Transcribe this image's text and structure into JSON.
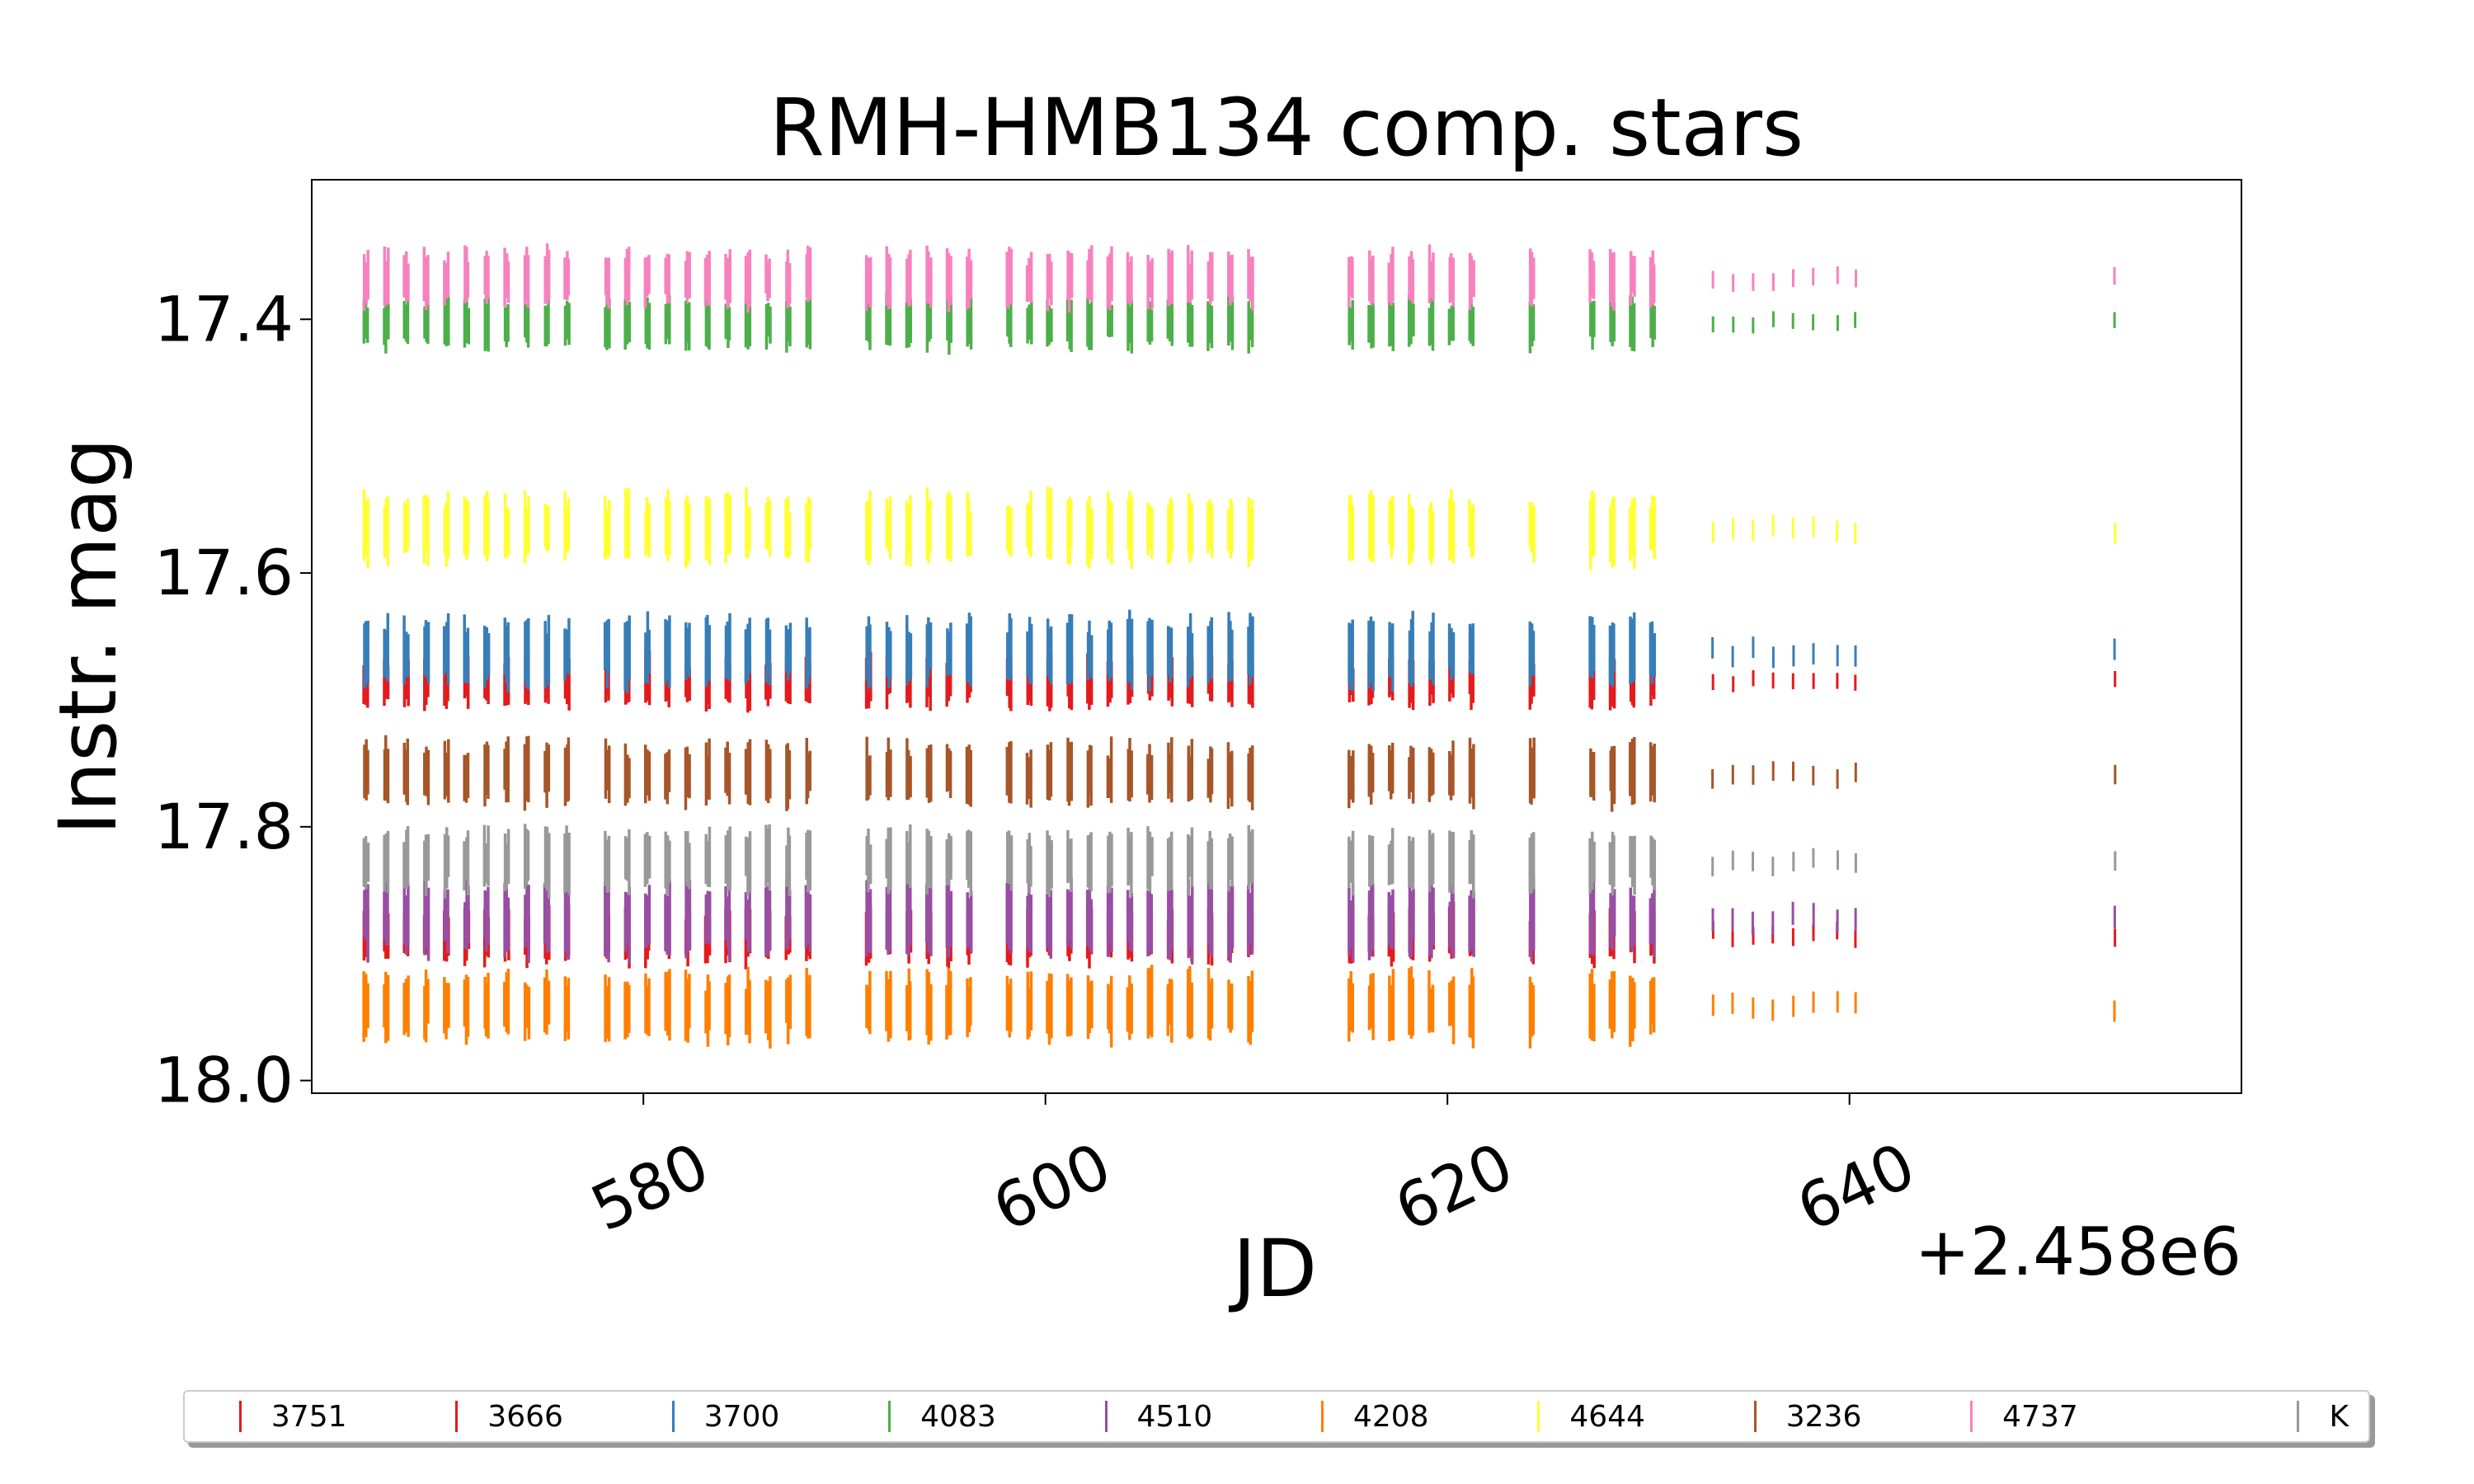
{
  "chart_data": {
    "type": "scatter",
    "title": "RMH-HMB134 comp. stars",
    "xlabel": "JD",
    "ylabel": "Instr. mag",
    "x_offset_label": "+2.458e6",
    "xlim": [
      563.5,
      659.5
    ],
    "ylim": [
      18.01,
      17.29
    ],
    "y_inverted": true,
    "xticks": [
      580,
      600,
      620,
      640
    ],
    "yticks": [
      17.4,
      17.6,
      17.8,
      18.0
    ],
    "ytick_labels": [
      "17.4",
      "17.6",
      "17.8",
      "18.0"
    ],
    "grid": false,
    "legend_position": "bottom",
    "nights": [
      566.2,
      567.2,
      568.2,
      569.2,
      570.2,
      571.2,
      572.2,
      573.2,
      574.2,
      575.2,
      576.2,
      578.2,
      579.2,
      580.2,
      581.2,
      582.2,
      583.2,
      584.2,
      585.2,
      586.2,
      587.2,
      588.2,
      591.2,
      592.2,
      593.2,
      594.2,
      595.2,
      596.2,
      598.2,
      599.2,
      600.2,
      601.2,
      602.2,
      603.2,
      604.2,
      605.2,
      606.2,
      607.2,
      608.2,
      609.2,
      610.2,
      615.2,
      616.2,
      617.2,
      618.2,
      619.2,
      620.2,
      621.2,
      624.2,
      627.2,
      628.2,
      629.2,
      630.2,
      633.2,
      634.2,
      635.2,
      636.2,
      637.2,
      638.2,
      639.4,
      640.3,
      653.2
    ],
    "series": [
      {
        "name": "3751",
        "color": "#e41a1c",
        "mag": 17.685,
        "spread": 0.018
      },
      {
        "name": "3666",
        "color": "#e41a1c",
        "mag": 17.885,
        "spread": 0.02
      },
      {
        "name": "3700",
        "color": "#377eb8",
        "mag": 17.662,
        "spread": 0.024
      },
      {
        "name": "4083",
        "color": "#4daf4a",
        "mag": 17.403,
        "spread": 0.018
      },
      {
        "name": "4510",
        "color": "#984ea3",
        "mag": 17.873,
        "spread": 0.026
      },
      {
        "name": "4208",
        "color": "#ff7f00",
        "mag": 17.942,
        "spread": 0.024
      },
      {
        "name": "4644",
        "color": "#ffff33",
        "mag": 17.565,
        "spread": 0.024
      },
      {
        "name": "3236",
        "color": "#a65628",
        "mag": 17.758,
        "spread": 0.022
      },
      {
        "name": "4737",
        "color": "#f781bf",
        "mag": 17.368,
        "spread": 0.02
      },
      {
        "name": "K",
        "color": "#999999",
        "mag": 17.827,
        "spread": 0.022
      }
    ]
  }
}
